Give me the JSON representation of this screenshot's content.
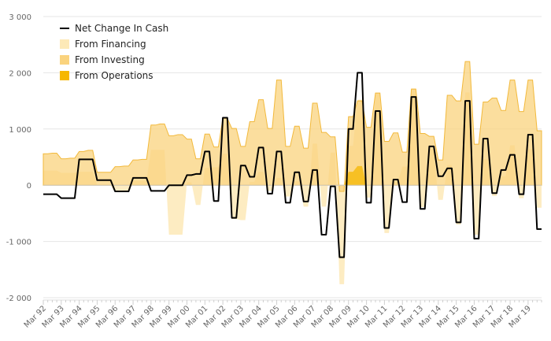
{
  "chart_data": {
    "type": "area",
    "title": "",
    "xlabel": "",
    "ylabel": "",
    "ylim": [
      -2000,
      3000
    ],
    "yticks": [
      -2000,
      -1000,
      0,
      1000,
      2000,
      3000
    ],
    "ytick_labels": [
      "-2 000",
      "-1 000",
      "0",
      "1 000",
      "2 000",
      "3 000"
    ],
    "x_tick_labels": [
      "Mar 92",
      "Mar 93",
      "Mar 94",
      "Mar 95",
      "Mar 96",
      "Mar 97",
      "Mar 98",
      "Mar 99",
      "Mar 00",
      "Mar 01",
      "Mar 02",
      "Mar 03",
      "Mar 04",
      "Mar 05",
      "Mar 06",
      "Mar 07",
      "Mar 08",
      "Mar 09",
      "Mar 10",
      "Mar 11",
      "Mar 12",
      "Mar 13",
      "Mar 14",
      "Mar 15",
      "Mar 16",
      "Mar 17",
      "Mar 18",
      "Mar 19"
    ],
    "start_year": 1992,
    "periods": 112,
    "grid": true,
    "legend_position": "top-left",
    "series": [
      {
        "name": "Net Change In Cash",
        "kind": "line",
        "color": "#000000",
        "values": [
          -160,
          -160,
          -160,
          -160,
          -230,
          -230,
          -230,
          -230,
          460,
          460,
          460,
          460,
          90,
          90,
          90,
          90,
          -110,
          -110,
          -110,
          -110,
          130,
          130,
          130,
          130,
          -100,
          -100,
          -100,
          -100,
          0,
          0,
          0,
          0,
          180,
          180,
          200,
          200,
          600,
          600,
          -280,
          -280,
          1200,
          1200,
          -580,
          -580,
          350,
          350,
          150,
          150,
          670,
          670,
          -150,
          -150,
          600,
          600,
          -310,
          -310,
          230,
          230,
          -290,
          -290,
          270,
          270,
          -880,
          -880,
          -20,
          -20,
          -1280,
          -1280,
          1000,
          1000,
          2000,
          2000,
          -310,
          -310,
          1320,
          1320,
          -760,
          -760,
          100,
          100,
          -300,
          -300,
          1570,
          1570,
          -420,
          -420,
          690,
          690,
          160,
          160,
          300,
          300,
          -660,
          -660,
          1500,
          1500,
          -950,
          -950,
          830,
          830,
          -140,
          -140,
          270,
          270,
          540,
          540,
          -160,
          -160,
          900,
          900,
          -780,
          -780
        ]
      },
      {
        "name": "From Financing",
        "kind": "area",
        "color": "#fde9b7",
        "values": [
          260,
          260,
          260,
          260,
          220,
          220,
          220,
          220,
          240,
          240,
          240,
          240,
          0,
          0,
          0,
          0,
          -120,
          -120,
          -120,
          -120,
          80,
          80,
          80,
          80,
          630,
          630,
          630,
          630,
          -880,
          -880,
          -880,
          -880,
          50,
          50,
          -350,
          -350,
          310,
          310,
          320,
          320,
          560,
          560,
          -600,
          -600,
          -620,
          -620,
          60,
          60,
          240,
          240,
          -100,
          -100,
          130,
          130,
          -200,
          -200,
          70,
          70,
          -380,
          -380,
          740,
          740,
          -380,
          -380,
          580,
          580,
          -1760,
          -1760,
          700,
          700,
          1520,
          1520,
          -220,
          -220,
          1640,
          1640,
          -850,
          -850,
          70,
          70,
          330,
          330,
          1720,
          1720,
          -390,
          -390,
          650,
          650,
          -260,
          -260,
          360,
          360,
          -700,
          -700,
          1650,
          1650,
          -880,
          -880,
          460,
          460,
          -190,
          -190,
          160,
          160,
          710,
          710,
          -230,
          -230,
          640,
          640,
          -400,
          -400
        ]
      },
      {
        "name": "From Investing",
        "kind": "area",
        "color": "#fad37e",
        "values": [
          560,
          560,
          570,
          570,
          470,
          470,
          480,
          480,
          600,
          600,
          620,
          620,
          230,
          230,
          230,
          230,
          330,
          330,
          340,
          340,
          450,
          450,
          460,
          460,
          1070,
          1070,
          1090,
          1090,
          880,
          880,
          900,
          900,
          820,
          820,
          470,
          470,
          910,
          910,
          680,
          680,
          1190,
          1190,
          1010,
          1010,
          690,
          690,
          1130,
          1130,
          1520,
          1520,
          1010,
          1010,
          1870,
          1870,
          690,
          690,
          1050,
          1050,
          660,
          660,
          1460,
          1460,
          940,
          940,
          860,
          860,
          -110,
          -110,
          1220,
          1220,
          1500,
          1500,
          1030,
          1030,
          1640,
          1640,
          780,
          780,
          930,
          930,
          590,
          590,
          1710,
          1710,
          920,
          920,
          870,
          870,
          450,
          450,
          1600,
          1600,
          1500,
          1500,
          2200,
          2200,
          730,
          730,
          1480,
          1480,
          1550,
          1550,
          1330,
          1330,
          1870,
          1870,
          1310,
          1310,
          1870,
          1870,
          970,
          970
        ]
      },
      {
        "name": "From Operations",
        "kind": "area",
        "color": "#f6b700",
        "values": [
          0,
          0,
          0,
          0,
          0,
          0,
          0,
          0,
          0,
          0,
          0,
          0,
          0,
          0,
          0,
          0,
          0,
          0,
          0,
          0,
          0,
          0,
          0,
          0,
          0,
          0,
          0,
          0,
          0,
          0,
          0,
          0,
          0,
          0,
          0,
          0,
          0,
          0,
          0,
          0,
          0,
          0,
          0,
          0,
          0,
          0,
          0,
          0,
          0,
          0,
          0,
          0,
          0,
          0,
          0,
          0,
          0,
          0,
          0,
          0,
          0,
          0,
          0,
          0,
          0,
          0,
          0,
          0,
          240,
          240,
          340,
          340,
          0,
          0,
          0,
          0,
          0,
          0,
          0,
          0,
          0,
          0,
          0,
          0,
          0,
          0,
          0,
          0,
          0,
          0,
          0,
          0,
          0,
          0,
          0,
          0,
          0,
          0,
          0,
          0,
          0,
          0,
          0,
          0,
          0,
          0,
          0,
          0,
          0,
          0
        ]
      }
    ]
  }
}
